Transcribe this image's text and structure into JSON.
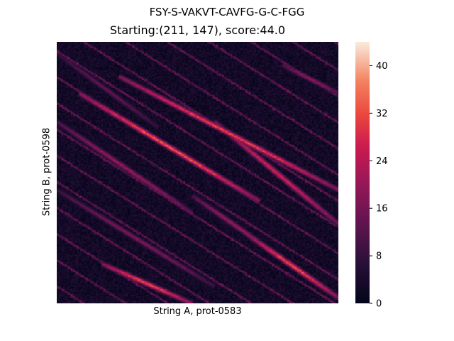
{
  "chart_data": {
    "type": "heatmap",
    "title": "FSY-S-VAKVT-CAVFG-G-C-FGG",
    "subtitle": "Starting:(211, 147), score:44.0",
    "xlabel": "String A, prot-0583",
    "ylabel": "String B, prot-0598",
    "colormap": "rocket",
    "colorbar": {
      "min": 0,
      "max": 44,
      "ticks": [
        0,
        8,
        16,
        24,
        32,
        40
      ]
    },
    "max_score": 44.0,
    "start": [
      211,
      147
    ],
    "grid_size": [
      250,
      230
    ],
    "diagonals": [
      {
        "x0": 20,
        "y0": 45,
        "x1": 180,
        "y1": 140,
        "peak": 40
      },
      {
        "x0": 55,
        "y0": 30,
        "x1": 250,
        "y1": 130,
        "peak": 38
      },
      {
        "x0": 140,
        "y0": 70,
        "x1": 250,
        "y1": 160,
        "peak": 32
      },
      {
        "x0": 0,
        "y0": 70,
        "x1": 120,
        "y1": 150,
        "peak": 24
      },
      {
        "x0": 40,
        "y0": 195,
        "x1": 120,
        "y1": 230,
        "peak": 38
      },
      {
        "x0": 170,
        "y0": 170,
        "x1": 250,
        "y1": 225,
        "peak": 38
      },
      {
        "x0": 120,
        "y0": 135,
        "x1": 200,
        "y1": 190,
        "peak": 24
      },
      {
        "x0": 0,
        "y0": 130,
        "x1": 140,
        "y1": 215,
        "peak": 20
      },
      {
        "x0": 200,
        "y0": 20,
        "x1": 250,
        "y1": 45,
        "peak": 22
      },
      {
        "x0": 0,
        "y0": 10,
        "x1": 90,
        "y1": 75,
        "peak": 16
      }
    ]
  }
}
